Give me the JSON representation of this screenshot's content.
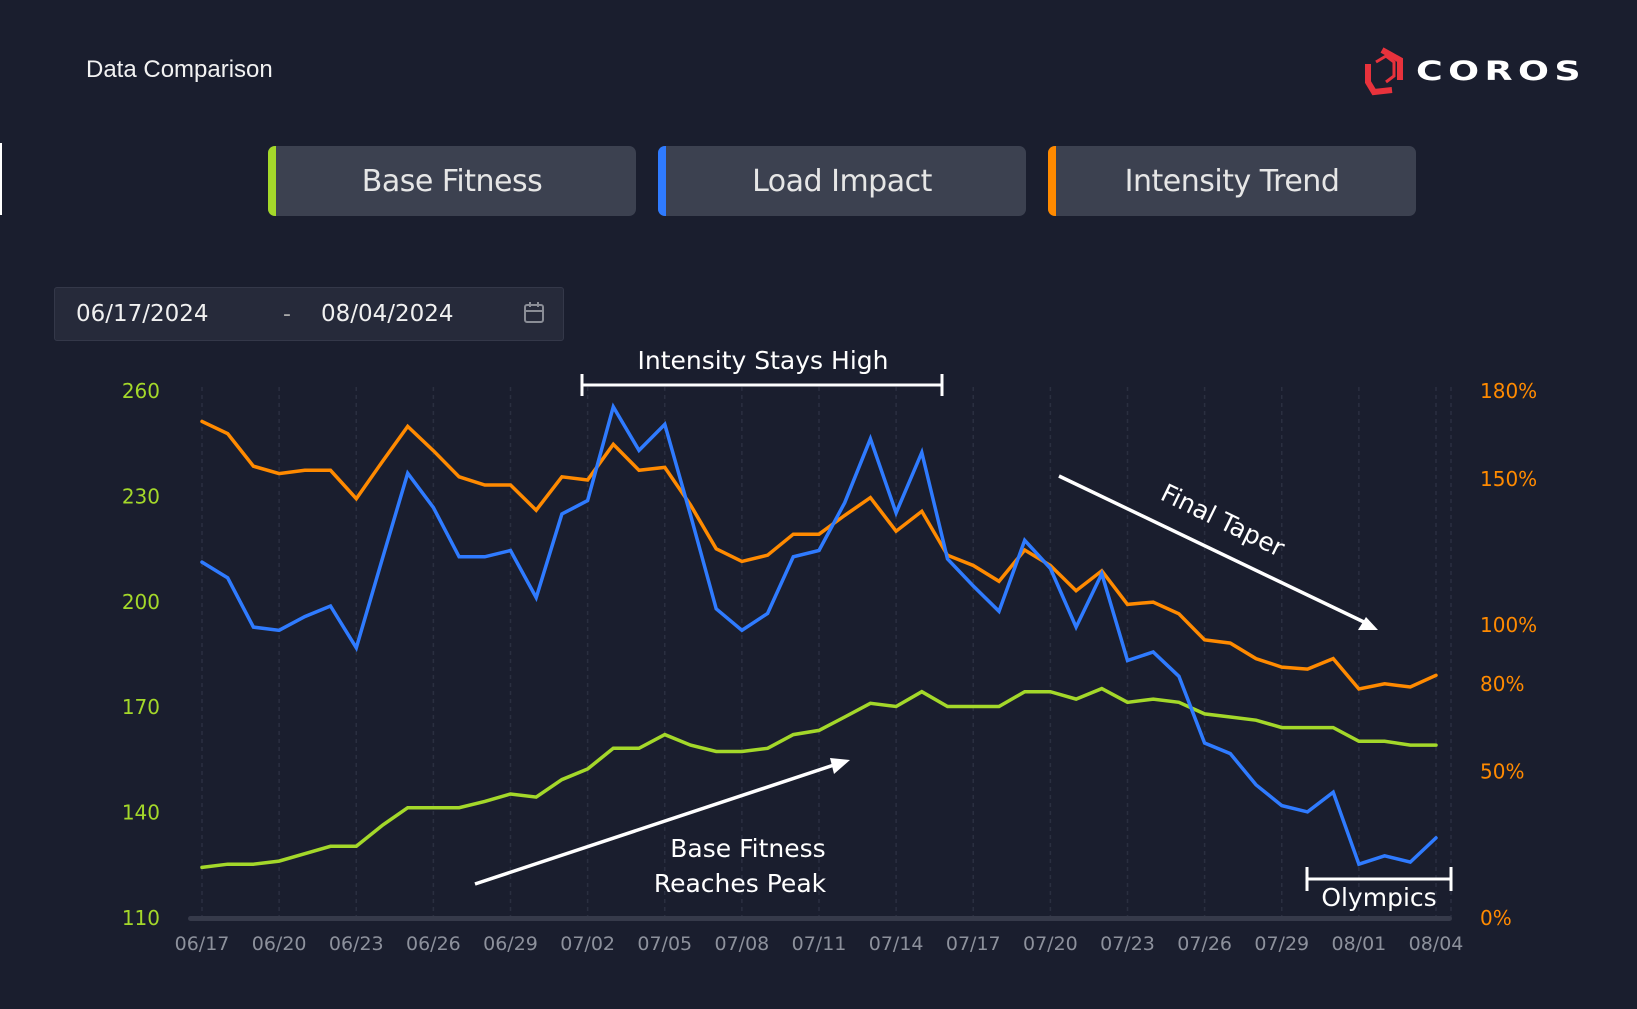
{
  "header": {
    "title": "Data Comparison",
    "brand": "COROS",
    "brand_color": "#e8323c"
  },
  "tabs": [
    {
      "label": "Base Fitness",
      "color": "#a4d82a"
    },
    {
      "label": "Load Impact",
      "color": "#2f7bff"
    },
    {
      "label": "Intensity Trend",
      "color": "#ff8a00"
    }
  ],
  "date_range": {
    "start": "06/17/2024",
    "separator": "-",
    "end": "08/04/2024",
    "icon": "calendar-icon"
  },
  "chart_data": {
    "type": "line",
    "title": "",
    "x_tick_labels": [
      "06/17",
      "06/20",
      "06/23",
      "06/26",
      "06/29",
      "07/02",
      "07/05",
      "07/08",
      "07/11",
      "07/14",
      "07/17",
      "07/20",
      "07/23",
      "07/26",
      "07/29",
      "08/01",
      "08/04"
    ],
    "x_start": "06/17",
    "x_end": "08/04",
    "num_days": 49,
    "y_left": {
      "ticks": [
        260,
        230,
        200,
        170,
        140,
        110
      ],
      "range": [
        110,
        260
      ],
      "color": "#a4d82a"
    },
    "y_right": {
      "ticks": [
        "180%",
        "150%",
        "100%",
        "80%",
        "50%",
        "0%"
      ],
      "tick_values": [
        180,
        150,
        100,
        80,
        50,
        0
      ],
      "range": [
        0,
        180
      ],
      "color": "#ff8a00"
    },
    "series": [
      {
        "name": "Base Fitness",
        "axis": "left",
        "color": "#a4d82a",
        "values": [
          124.4,
          125.3,
          125.3,
          126.2,
          128.3,
          130.4,
          130.4,
          136.3,
          141.4,
          141.4,
          141.4,
          143.2,
          145.3,
          144.4,
          149.4,
          152.4,
          158.3,
          158.3,
          162.2,
          159.2,
          157.4,
          157.4,
          158.3,
          162.2,
          163.4,
          167.2,
          171.1,
          170.2,
          174.4,
          170.2,
          170.2,
          170.2,
          174.4,
          174.4,
          172.3,
          175.3,
          171.4,
          172.3,
          171.4,
          168.1,
          167.2,
          166.3,
          164.2,
          164.2,
          164.2,
          160.3,
          160.3,
          159.2,
          159.2
        ]
      },
      {
        "name": "Load Impact",
        "axis": "left",
        "color": "#2f7bff",
        "values": [
          211.3,
          206.8,
          192.8,
          191.9,
          195.8,
          198.8,
          186.9,
          211.9,
          236.6,
          226.8,
          212.8,
          212.8,
          214.6,
          201.2,
          225.0,
          228.8,
          255.5,
          243.1,
          250.5,
          224.7,
          198.0,
          191.9,
          196.7,
          212.8,
          214.6,
          228.2,
          246.4,
          225.3,
          242.5,
          212.2,
          204.5,
          197.3,
          217.5,
          209.5,
          192.8,
          208.0,
          183.3,
          185.7,
          178.8,
          159.8,
          156.8,
          147.9,
          142.0,
          140.2,
          145.8,
          125.3,
          127.7,
          125.9,
          132.8
        ]
      },
      {
        "name": "Intensity Trend",
        "axis": "right",
        "unit": "%",
        "color": "#ff8a00",
        "values": [
          169.6,
          165.4,
          154.3,
          151.8,
          152.9,
          152.9,
          143.2,
          155.7,
          167.9,
          159.6,
          150.7,
          147.9,
          147.9,
          139.3,
          150.7,
          149.6,
          161.8,
          152.9,
          153.9,
          141.1,
          126.1,
          121.8,
          123.9,
          131.1,
          131.1,
          137.5,
          143.6,
          132.1,
          138.9,
          123.9,
          120.4,
          115.0,
          125.7,
          120.4,
          111.8,
          118.6,
          107.1,
          107.9,
          103.9,
          95.0,
          93.9,
          88.6,
          85.7,
          85.0,
          88.6,
          78.2,
          80.0,
          78.9,
          82.9
        ]
      }
    ],
    "annotations": [
      {
        "text": "Intensity Stays High",
        "type": "bracket",
        "from": "07/02",
        "to": "07/16"
      },
      {
        "text": "Final Taper",
        "type": "arrow",
        "direction": "down-right"
      },
      {
        "text": "Base Fitness Reaches Peak",
        "lines": [
          "Base Fitness",
          "Reaches Peak"
        ],
        "type": "arrow",
        "direction": "up-right"
      },
      {
        "text": "Olympics",
        "type": "bracket",
        "from": "07/30",
        "to": "08/04"
      }
    ],
    "grid": true,
    "legend": "none"
  }
}
